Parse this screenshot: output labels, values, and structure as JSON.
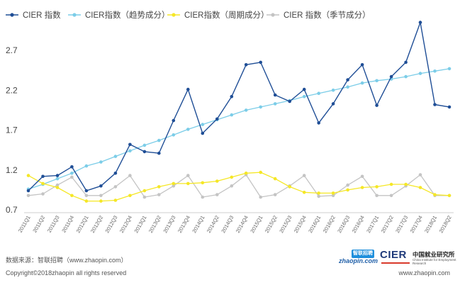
{
  "chart_data": {
    "type": "line",
    "x": [
      "2011Q1",
      "2011Q2",
      "2011Q3",
      "2011Q4",
      "2012Q1",
      "2012Q2",
      "2012Q3",
      "2012Q4",
      "2013Q1",
      "2013Q2",
      "2013Q3",
      "2013Q4",
      "2014Q1",
      "2014Q2",
      "2014Q3",
      "2014Q4",
      "2015Q1",
      "2015Q2",
      "2015Q3",
      "2015Q4",
      "2016Q1",
      "2016Q2",
      "2016Q3",
      "2016Q4",
      "2017Q1",
      "2017Q2",
      "2017Q3",
      "2017Q4",
      "2018Q1",
      "2018Q2"
    ],
    "ylim": [
      0.7,
      3.0
    ],
    "yticks": [
      0.7,
      1.2,
      1.7,
      2.2,
      2.7
    ],
    "ytick_labels": [
      "0.7",
      "1.2",
      "1.7",
      "2.2",
      "2.7"
    ],
    "grid": false,
    "legend_position": "top-left",
    "series": [
      {
        "name": "CIER 指数",
        "color": "#1f4e96",
        "marker": "circle",
        "values": [
          0.94,
          1.12,
          1.13,
          1.24,
          0.94,
          1.0,
          1.16,
          1.52,
          1.43,
          1.41,
          1.82,
          2.21,
          1.66,
          1.84,
          2.12,
          2.52,
          2.55,
          2.14,
          2.06,
          2.21,
          1.79,
          2.03,
          2.33,
          2.52,
          2.01,
          2.37,
          2.55,
          3.05,
          2.02,
          1.99
        ]
      },
      {
        "name": "CIER指数（趋势成分）",
        "color": "#7ccde8",
        "marker": "circle",
        "values": [
          0.96,
          1.02,
          1.09,
          1.16,
          1.25,
          1.3,
          1.37,
          1.44,
          1.51,
          1.57,
          1.64,
          1.71,
          1.77,
          1.83,
          1.89,
          1.95,
          1.99,
          2.03,
          2.07,
          2.12,
          2.16,
          2.2,
          2.24,
          2.29,
          2.32,
          2.34,
          2.37,
          2.41,
          2.44,
          2.47
        ]
      },
      {
        "name": "CIER指数（周期成分）",
        "color": "#f5e726",
        "marker": "circle",
        "values": [
          1.13,
          1.03,
          0.98,
          0.88,
          0.81,
          0.81,
          0.82,
          0.88,
          0.94,
          0.99,
          1.03,
          1.03,
          1.04,
          1.06,
          1.11,
          1.16,
          1.17,
          1.09,
          0.99,
          0.92,
          0.91,
          0.91,
          0.95,
          0.98,
          0.99,
          1.02,
          1.02,
          0.98,
          0.89,
          0.88
        ]
      },
      {
        "name": "CIER 指数（季节成分）",
        "color": "#c4c4c4",
        "marker": "circle",
        "values": [
          0.88,
          0.9,
          1.01,
          1.11,
          0.88,
          0.88,
          0.99,
          1.13,
          0.86,
          0.89,
          1.0,
          1.13,
          0.86,
          0.89,
          1.0,
          1.14,
          0.86,
          0.89,
          1.0,
          1.13,
          0.87,
          0.88,
          1.01,
          1.12,
          0.88,
          0.88,
          1.0,
          1.14,
          0.88,
          0.88
        ]
      }
    ]
  },
  "footer": {
    "source": "数据来源：智联招聘（www.zhaopin.com）",
    "copyright": "Copyright©2018zhaopin all rights reserved",
    "website": "www.zhaopin.com"
  },
  "logos": {
    "zhaopin_mark": "智联招聘",
    "zhaopin_text": "zhaopin.com",
    "cier_main": "CIER",
    "cier_cn": "中国就业研究所",
    "cier_en": "China Institute for Employment Research"
  }
}
